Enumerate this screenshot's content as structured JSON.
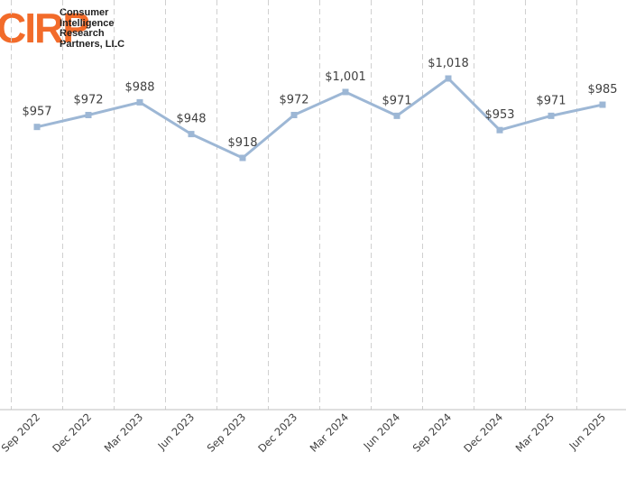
{
  "logo": {
    "mark": "CIRP",
    "lines": [
      "Consumer",
      "Intelligence",
      "Research",
      "Partners, LLC"
    ]
  },
  "chart_data": {
    "type": "line",
    "categories": [
      "Sep 2022",
      "Dec 2022",
      "Mar 2023",
      "Jun 2023",
      "Sep 2023",
      "Dec 2023",
      "Mar 2024",
      "Jun 2024",
      "Sep 2024",
      "Dec 2024",
      "Mar 2025",
      "Jun 2025"
    ],
    "values": [
      957,
      972,
      988,
      948,
      918,
      972,
      1001,
      971,
      1018,
      953,
      971,
      985
    ],
    "data_labels": [
      "$957",
      "$972",
      "$988",
      "$948",
      "$918",
      "$972",
      "$1,001",
      "$971",
      "$1,018",
      "$953",
      "$971",
      "$985"
    ],
    "title": "",
    "xlabel": "",
    "ylabel": "",
    "grid": "vertical dashed",
    "legend": "none",
    "colors": {
      "line": "#9db7d5",
      "marker": "#9db7d5",
      "grid": "#d0d0d0",
      "axis": "#bfbfbf",
      "text": "#404040",
      "logo": "#f26b2a"
    }
  }
}
